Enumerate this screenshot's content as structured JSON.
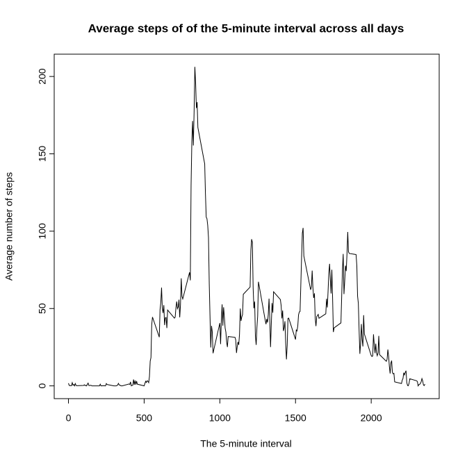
{
  "chart_data": {
    "type": "line",
    "title": "Average steps of of the 5-minute interval across all days",
    "x_label": "The 5-minute interval",
    "y_label": "Average number of steps",
    "color": "#000000",
    "xlim": [
      -94.2,
      2449.2
    ],
    "xticks": [
      0,
      500,
      1000,
      1500,
      2000
    ],
    "ylim": [
      -8.25,
      214.42
    ],
    "yticks": [
      0,
      50,
      100,
      150,
      200
    ],
    "x": [
      0,
      5,
      10,
      15,
      20,
      25,
      30,
      35,
      40,
      45,
      50,
      55,
      100,
      105,
      110,
      115,
      120,
      125,
      130,
      135,
      140,
      145,
      150,
      155,
      200,
      205,
      210,
      215,
      220,
      225,
      230,
      235,
      240,
      245,
      250,
      255,
      300,
      305,
      310,
      315,
      320,
      325,
      330,
      335,
      340,
      345,
      350,
      355,
      400,
      405,
      410,
      415,
      420,
      425,
      430,
      435,
      440,
      445,
      450,
      455,
      500,
      505,
      510,
      515,
      520,
      525,
      530,
      535,
      540,
      545,
      550,
      555,
      600,
      605,
      610,
      615,
      620,
      625,
      630,
      635,
      640,
      645,
      650,
      655,
      700,
      705,
      710,
      715,
      720,
      725,
      730,
      735,
      740,
      745,
      750,
      755,
      800,
      805,
      810,
      815,
      820,
      825,
      830,
      835,
      840,
      845,
      850,
      855,
      900,
      905,
      910,
      915,
      920,
      925,
      930,
      935,
      940,
      945,
      950,
      955,
      1000,
      1005,
      1010,
      1015,
      1020,
      1025,
      1030,
      1035,
      1040,
      1045,
      1050,
      1055,
      1100,
      1105,
      1110,
      1115,
      1120,
      1125,
      1130,
      1135,
      1140,
      1145,
      1150,
      1155,
      1200,
      1205,
      1210,
      1215,
      1220,
      1225,
      1230,
      1235,
      1240,
      1245,
      1250,
      1255,
      1300,
      1305,
      1310,
      1315,
      1320,
      1325,
      1330,
      1335,
      1340,
      1345,
      1350,
      1355,
      1400,
      1405,
      1410,
      1415,
      1420,
      1425,
      1430,
      1435,
      1440,
      1445,
      1450,
      1455,
      1500,
      1505,
      1510,
      1515,
      1520,
      1525,
      1530,
      1535,
      1540,
      1545,
      1550,
      1555,
      1600,
      1605,
      1610,
      1615,
      1620,
      1625,
      1630,
      1635,
      1640,
      1645,
      1650,
      1655,
      1700,
      1705,
      1710,
      1715,
      1720,
      1725,
      1730,
      1735,
      1740,
      1745,
      1750,
      1755,
      1800,
      1805,
      1810,
      1815,
      1820,
      1825,
      1830,
      1835,
      1840,
      1845,
      1850,
      1855,
      1900,
      1905,
      1910,
      1915,
      1920,
      1925,
      1930,
      1935,
      1940,
      1945,
      1950,
      1955,
      2000,
      2005,
      2010,
      2015,
      2020,
      2025,
      2030,
      2035,
      2040,
      2045,
      2050,
      2055,
      2100,
      2105,
      2110,
      2115,
      2120,
      2125,
      2130,
      2135,
      2140,
      2145,
      2150,
      2155,
      2200,
      2205,
      2210,
      2215,
      2220,
      2225,
      2230,
      2235,
      2240,
      2245,
      2250,
      2255,
      2300,
      2305,
      2310,
      2315,
      2320,
      2325,
      2330,
      2335,
      2340,
      2345,
      2350,
      2355
    ],
    "values": [
      1.7,
      0.3,
      0.1,
      0.2,
      0.1,
      2.1,
      0.5,
      0.9,
      0,
      1.5,
      0.3,
      0.1,
      0.3,
      0.7,
      0.2,
      0.3,
      0,
      1.1,
      1.8,
      0.2,
      0.2,
      0.4,
      0.3,
      0,
      0,
      0,
      1.1,
      0,
      0,
      0.1,
      0,
      0.2,
      0,
      0,
      1.5,
      0.9,
      0,
      0,
      0,
      0,
      0.2,
      0.6,
      1.6,
      0.6,
      0.5,
      0.1,
      0,
      0,
      1.2,
      0.9,
      2.6,
      0,
      0.3,
      0.4,
      4.1,
      0.7,
      3.5,
      0.8,
      3.1,
      1.1,
      0,
      1.6,
      3,
      2.2,
      3.3,
      3,
      2.1,
      6.1,
      16,
      18.3,
      39.5,
      44.5,
      31.5,
      49.3,
      53.8,
      63.5,
      50,
      47.1,
      52.2,
      39.3,
      44,
      44.2,
      37.4,
      49,
      43.8,
      44.4,
      50.5,
      54.5,
      49.9,
      51,
      55.7,
      44.3,
      52.3,
      69.5,
      57.8,
      56.2,
      73.4,
      68.2,
      129.4,
      157.5,
      171.2,
      155.4,
      177.3,
      206.2,
      195.9,
      179.6,
      183.4,
      167,
      143.5,
      124,
      109.1,
      108.1,
      103.7,
      95.97,
      66.2,
      45.2,
      24.8,
      38.8,
      34.98,
      21.1,
      40.6,
      26.98,
      42.4,
      52.7,
      38.9,
      50.8,
      44.3,
      37.4,
      34.7,
      28.3,
      25.1,
      31.9,
      31.4,
      29.7,
      21.3,
      25.5,
      28.4,
      26.5,
      33.4,
      49.98,
      42,
      44.6,
      46,
      59.2,
      63.9,
      87.7,
      94.8,
      92.8,
      63.4,
      50.2,
      54.5,
      32.4,
      26.5,
      37.7,
      45.1,
      67.3,
      42.3,
      39.9,
      43.3,
      40.98,
      46.2,
      56.4,
      42.8,
      25.1,
      39.97,
      53.5,
      47.3,
      60.8,
      55.8,
      51.96,
      43.6,
      48.7,
      35.5,
      37.5,
      41.8,
      27.5,
      17.1,
      26.1,
      43.6,
      43.8,
      30,
      36.1,
      35.5,
      38.8,
      45.96,
      47.8,
      48.1,
      65.3,
      82.9,
      98.7,
      102.1,
      83.96,
      62.1,
      64.1,
      74.5,
      63.2,
      56.9,
      59.8,
      43.9,
      38.6,
      44.7,
      45.5,
      46.2,
      43.7,
      46.6,
      56.3,
      50.7,
      61.2,
      72.7,
      78.9,
      68.9,
      59.7,
      75.1,
      56.5,
      34.8,
      37.5,
      40.7,
      58,
      74.7,
      85.3,
      59.3,
      67.8,
      77.7,
      74.2,
      85.3,
      99.5,
      86.6,
      85.6,
      84.9,
      77.8,
      58,
      53.4,
      36.3,
      20.7,
      27.4,
      40,
      30.2,
      25.5,
      45.7,
      33.5,
      19.6,
      19,
      19.3,
      33.3,
      26.8,
      21.2,
      27.3,
      21.3,
      19.5,
      21.3,
      32.3,
      20.2,
      15.9,
      17.2,
      23.5,
      19.2,
      12.5,
      8,
      14.7,
      16.3,
      8.7,
      7.8,
      8.1,
      2.6,
      1.5,
      3.7,
      4.8,
      8.5,
      7.1,
      8.7,
      9.8,
      2.2,
      0.3,
      0.1,
      1.6,
      4.6,
      3.3,
      2.8,
      0,
      0.8,
      0.96,
      1.6,
      2.6,
      4.7,
      3.3,
      0.6,
      0.2,
      1.1
    ]
  }
}
